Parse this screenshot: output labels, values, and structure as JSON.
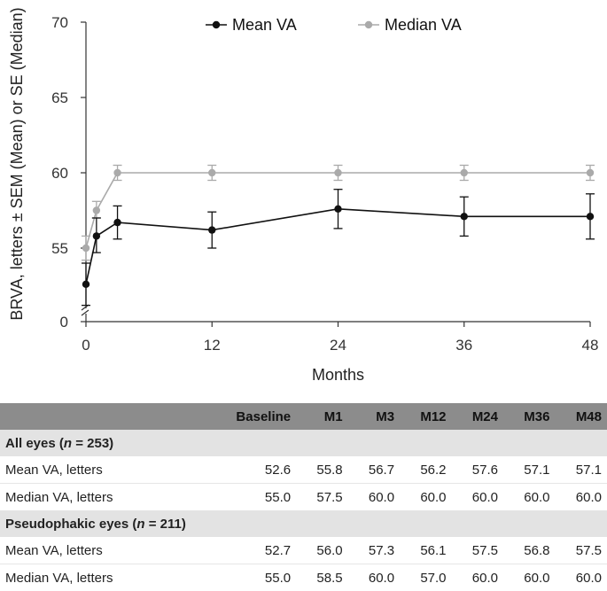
{
  "chart_data": {
    "type": "line",
    "title": "",
    "xlabel": "Months",
    "ylabel": "BRVA, letters ± SEM (Mean) or SE (Median)",
    "x": [
      0,
      1,
      3,
      12,
      24,
      36,
      48
    ],
    "xticks": [
      0,
      12,
      24,
      36,
      48
    ],
    "yticks": [
      0,
      55,
      60,
      65,
      70
    ],
    "ylim_break": [
      50,
      70
    ],
    "axis_break": true,
    "legend_position": "top-center",
    "series": [
      {
        "name": "Mean VA",
        "color": "#111111",
        "values": [
          52.6,
          55.8,
          56.7,
          56.2,
          57.6,
          57.1,
          57.1
        ],
        "err_low": [
          51.2,
          54.7,
          55.6,
          55.0,
          56.3,
          55.8,
          55.6
        ],
        "err_high": [
          54.0,
          57.0,
          57.8,
          57.4,
          58.9,
          58.4,
          58.6
        ]
      },
      {
        "name": "Median VA",
        "color": "#aaaaaa",
        "values": [
          55.0,
          57.5,
          60.0,
          60.0,
          60.0,
          60.0,
          60.0
        ],
        "err_low": [
          54.2,
          57.0,
          59.5,
          59.5,
          59.5,
          59.5,
          59.5
        ],
        "err_high": [
          55.8,
          58.1,
          60.5,
          60.5,
          60.5,
          60.5,
          60.5
        ]
      }
    ]
  },
  "table": {
    "headers": [
      "",
      "Baseline",
      "M1",
      "M3",
      "M12",
      "M24",
      "M36",
      "M48"
    ],
    "groups": [
      {
        "title_prefix": "All eyes (",
        "n_symbol": "n",
        "title_suffix": " = 253)",
        "rows": [
          {
            "label": "Mean VA, letters",
            "values": [
              "52.6",
              "55.8",
              "56.7",
              "56.2",
              "57.6",
              "57.1",
              "57.1"
            ]
          },
          {
            "label": "Median VA, letters",
            "values": [
              "55.0",
              "57.5",
              "60.0",
              "60.0",
              "60.0",
              "60.0",
              "60.0"
            ]
          }
        ]
      },
      {
        "title_prefix": "Pseudophakic eyes (",
        "n_symbol": "n",
        "title_suffix": " = 211)",
        "rows": [
          {
            "label": "Mean VA, letters",
            "values": [
              "52.7",
              "56.0",
              "57.3",
              "56.1",
              "57.5",
              "56.8",
              "57.5"
            ]
          },
          {
            "label": "Median VA, letters",
            "values": [
              "55.0",
              "58.5",
              "60.0",
              "57.0",
              "60.0",
              "60.0",
              "60.0"
            ]
          }
        ]
      }
    ]
  }
}
